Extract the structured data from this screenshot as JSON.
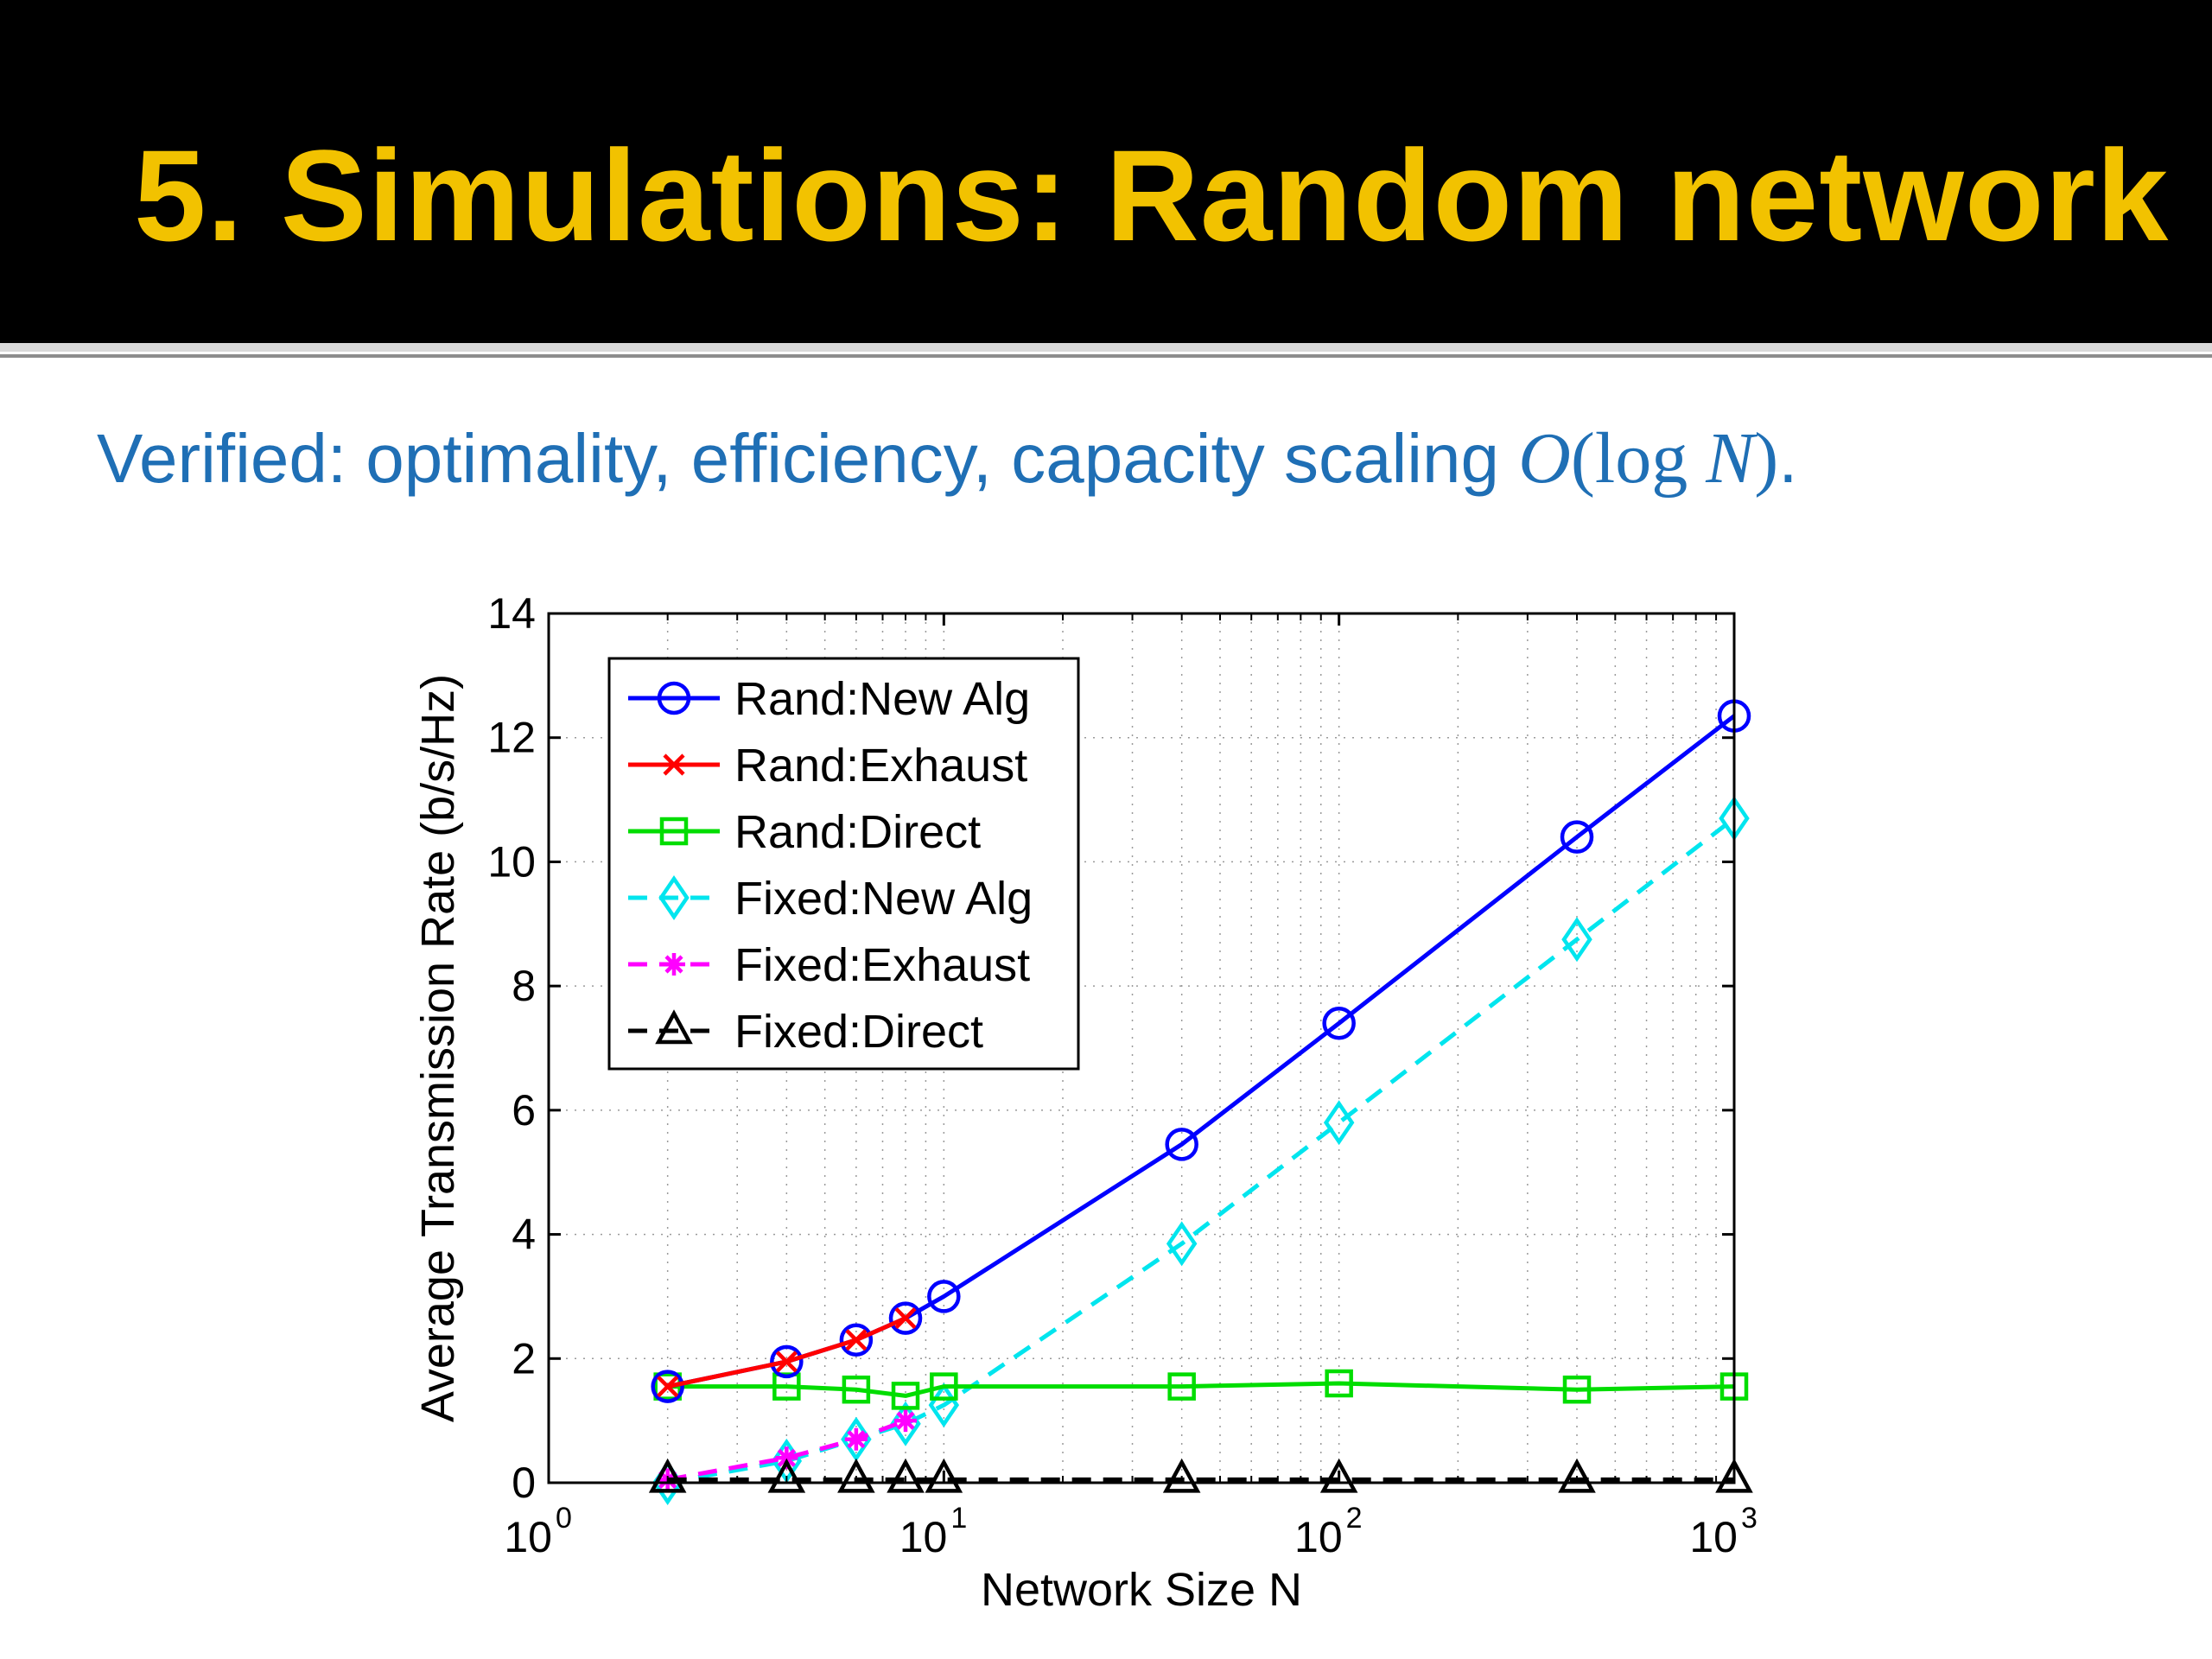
{
  "slide": {
    "title": "5. Simulations: Random network",
    "subtitle_prefix": "Verified: optimality, efficiency, capacity scaling ",
    "subtitle_math_O": "O",
    "subtitle_math_paren_open": "(",
    "subtitle_math_log": "log",
    "subtitle_math_N": "N",
    "subtitle_math_paren_close": ")",
    "subtitle_suffix": ".",
    "title_color": "#F2C200",
    "subtitle_color": "#1F6FB5"
  },
  "chart_data": {
    "type": "line",
    "title": "",
    "xlabel": "Network Size N",
    "ylabel": "Average Transmission Rate (b/s/Hz)",
    "xscale": "log",
    "xlim": [
      1,
      1000
    ],
    "ylim": [
      0,
      14
    ],
    "x_ticks": [
      {
        "value": 1,
        "base": "10",
        "exp": "0"
      },
      {
        "value": 10,
        "base": "10",
        "exp": "1"
      },
      {
        "value": 100,
        "base": "10",
        "exp": "2"
      },
      {
        "value": 1000,
        "base": "10",
        "exp": "3"
      }
    ],
    "y_ticks": [
      "0",
      "2",
      "4",
      "6",
      "8",
      "10",
      "12",
      "14"
    ],
    "grid": true,
    "legend_position": "top-left",
    "series": [
      {
        "name": "Rand:New Alg",
        "color": "#0000FF",
        "line": "solid",
        "marker": "circle",
        "x": [
          2,
          4,
          6,
          8,
          10,
          40,
          100,
          400,
          1000
        ],
        "y": [
          1.55,
          1.95,
          2.3,
          2.65,
          3.0,
          5.45,
          7.4,
          10.4,
          12.35
        ]
      },
      {
        "name": "Rand:Exhaust",
        "color": "#FF0000",
        "line": "solid",
        "marker": "x",
        "x": [
          2,
          4,
          6,
          8
        ],
        "y": [
          1.55,
          1.95,
          2.3,
          2.65
        ]
      },
      {
        "name": "Rand:Direct",
        "color": "#00DD00",
        "line": "solid",
        "marker": "square",
        "x": [
          2,
          4,
          6,
          8,
          10,
          40,
          100,
          400,
          1000
        ],
        "y": [
          1.55,
          1.55,
          1.5,
          1.4,
          1.55,
          1.55,
          1.6,
          1.5,
          1.55
        ]
      },
      {
        "name": "Fixed:New Alg",
        "color": "#00E5EE",
        "line": "dashed",
        "marker": "diamond",
        "x": [
          2,
          4,
          6,
          8,
          10,
          40,
          100,
          400,
          1000
        ],
        "y": [
          0.0,
          0.35,
          0.7,
          0.95,
          1.25,
          3.85,
          5.8,
          8.75,
          10.7
        ]
      },
      {
        "name": "Fixed:Exhaust",
        "color": "#FF00FF",
        "line": "dashed",
        "marker": "asterisk",
        "x": [
          2,
          4,
          6,
          8
        ],
        "y": [
          0.05,
          0.4,
          0.7,
          1.0
        ]
      },
      {
        "name": "Fixed:Direct",
        "color": "#000000",
        "line": "dashed",
        "marker": "triangle",
        "x": [
          2,
          4,
          6,
          8,
          10,
          40,
          100,
          400,
          1000
        ],
        "y": [
          0.05,
          0.05,
          0.05,
          0.05,
          0.05,
          0.05,
          0.05,
          0.05,
          0.05
        ]
      }
    ]
  }
}
